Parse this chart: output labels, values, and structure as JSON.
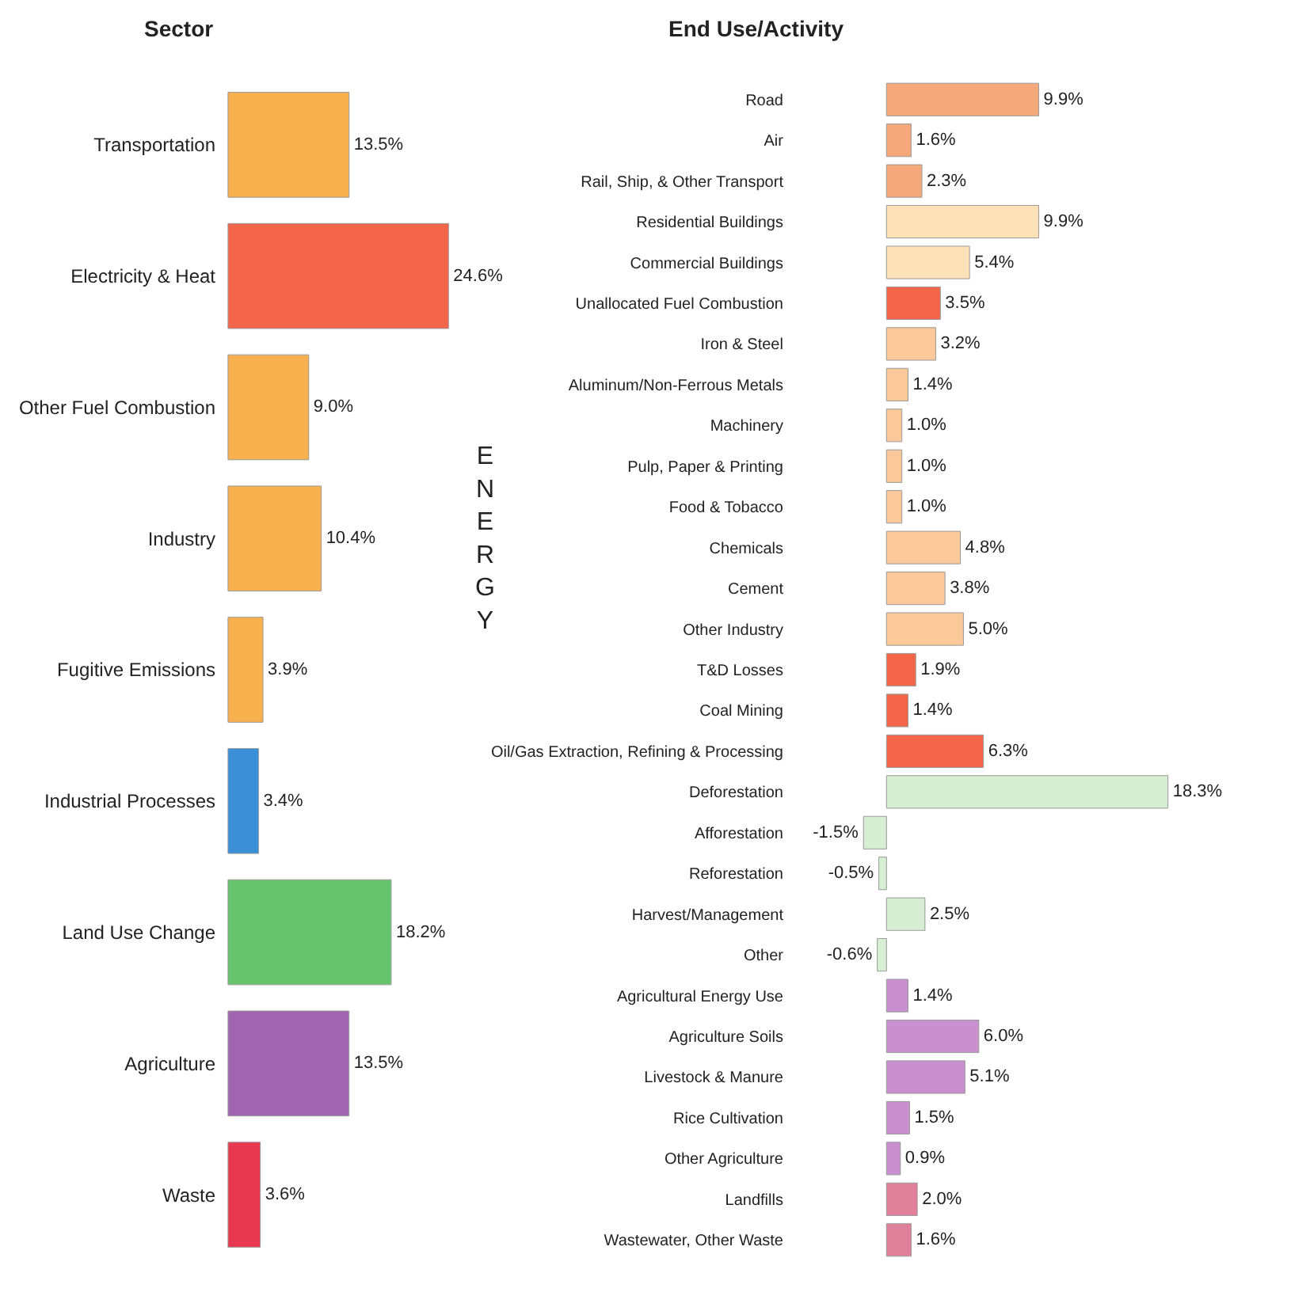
{
  "chart_data": [
    {
      "type": "bar",
      "orientation": "horizontal",
      "title": "Sector",
      "categories": [
        "Transportation",
        "Electricity & Heat",
        "Other Fuel Combustion",
        "Industry",
        "Fugitive Emissions",
        "Industrial Processes",
        "Land Use Change",
        "Agriculture",
        "Waste"
      ],
      "values": [
        13.5,
        24.6,
        9.0,
        10.4,
        3.9,
        3.4,
        18.2,
        13.5,
        3.6
      ],
      "value_labels": [
        "13.5%",
        "24.6%",
        "9.0%",
        "10.4%",
        "3.9%",
        "3.4%",
        "18.2%",
        "13.5%",
        "3.6%"
      ],
      "colors": [
        "#f9b04e",
        "#f4664a",
        "#f9b04e",
        "#f9b04e",
        "#f9b04e",
        "#3a8fd6",
        "#66c46c",
        "#a066b0",
        "#e8384f"
      ],
      "annotations": [
        "ENERGY"
      ]
    },
    {
      "type": "bar",
      "orientation": "horizontal",
      "title": "End Use/Activity",
      "categories": [
        "Road",
        "Air",
        "Rail, Ship, & Other Transport",
        "Residential Buildings",
        "Commercial Buildings",
        "Unallocated Fuel Combustion",
        "Iron & Steel",
        "Aluminum/Non-Ferrous Metals",
        "Machinery",
        "Pulp, Paper & Printing",
        "Food & Tobacco",
        "Chemicals",
        "Cement",
        "Other Industry",
        "T&D Losses",
        "Coal Mining",
        "Oil/Gas Extraction, Refining & Processing",
        "Deforestation",
        "Afforestation",
        "Reforestation",
        "Harvest/Management",
        "Other",
        "Agricultural Energy Use",
        "Agriculture Soils",
        "Livestock & Manure",
        "Rice Cultivation",
        "Other Agriculture",
        "Landfills",
        "Wastewater, Other Waste"
      ],
      "values": [
        9.9,
        1.6,
        2.3,
        9.9,
        5.4,
        3.5,
        3.2,
        1.4,
        1.0,
        1.0,
        1.0,
        4.8,
        3.8,
        5.0,
        1.9,
        1.4,
        6.3,
        18.3,
        -1.5,
        -0.5,
        2.5,
        -0.6,
        1.4,
        6.0,
        5.1,
        1.5,
        0.9,
        2.0,
        1.6
      ],
      "value_labels": [
        "9.9%",
        "1.6%",
        "2.3%",
        "9.9%",
        "5.4%",
        "3.5%",
        "3.2%",
        "1.4%",
        "1.0%",
        "1.0%",
        "1.0%",
        "4.8%",
        "3.8%",
        "5.0%",
        "1.9%",
        "1.4%",
        "6.3%",
        "18.3%",
        "-1.5%",
        "-0.5%",
        "2.5%",
        "-0.6%",
        "1.4%",
        "6.0%",
        "5.1%",
        "1.5%",
        "0.9%",
        "2.0%",
        "1.6%"
      ],
      "colors": [
        "#f5a87a",
        "#f5a87a",
        "#f5a87a",
        "#fde2b8",
        "#fde2b8",
        "#f4664a",
        "#fbc89a",
        "#fbc89a",
        "#fbc89a",
        "#fbc89a",
        "#fbc89a",
        "#fbc89a",
        "#fbc89a",
        "#fbc89a",
        "#f4664a",
        "#f4664a",
        "#f4664a",
        "#d6efd2",
        "#d6efd2",
        "#d6efd2",
        "#d6efd2",
        "#d6efd2",
        "#c990cf",
        "#c990cf",
        "#c990cf",
        "#c990cf",
        "#c990cf",
        "#e1809a",
        "#e1809a"
      ]
    }
  ]
}
